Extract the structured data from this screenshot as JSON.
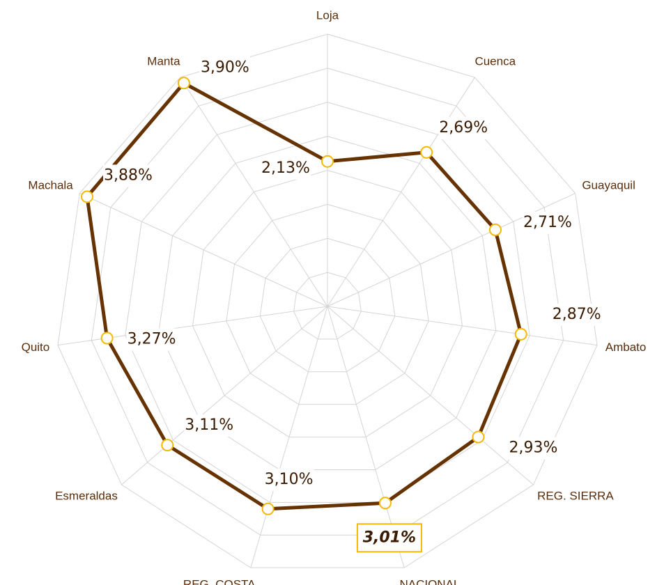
{
  "chart_data": {
    "type": "radar",
    "categories": [
      "Loja",
      "Cuenca",
      "Guayaquil",
      "Ambato",
      "REG. SIERRA",
      "NACIONAL",
      "REG. COSTA",
      "Esmeraldas",
      "Quito",
      "Machala",
      "Manta"
    ],
    "values": [
      2.13,
      2.69,
      2.71,
      2.87,
      2.93,
      3.01,
      3.1,
      3.11,
      3.27,
      3.88,
      3.9
    ],
    "value_labels": [
      "2,13%",
      "2,69%",
      "2,71%",
      "2,87%",
      "2,93%",
      "3,01%",
      "3,10%",
      "3,11%",
      "3,27%",
      "3,88%",
      "3,90%"
    ],
    "color": "#663300",
    "marker_color": "#f5b800",
    "rlim": [
      0,
      4
    ],
    "rticks": [
      0,
      0.5,
      1,
      1.5,
      2,
      2.5,
      3,
      3.5,
      4
    ],
    "grid": true
  }
}
